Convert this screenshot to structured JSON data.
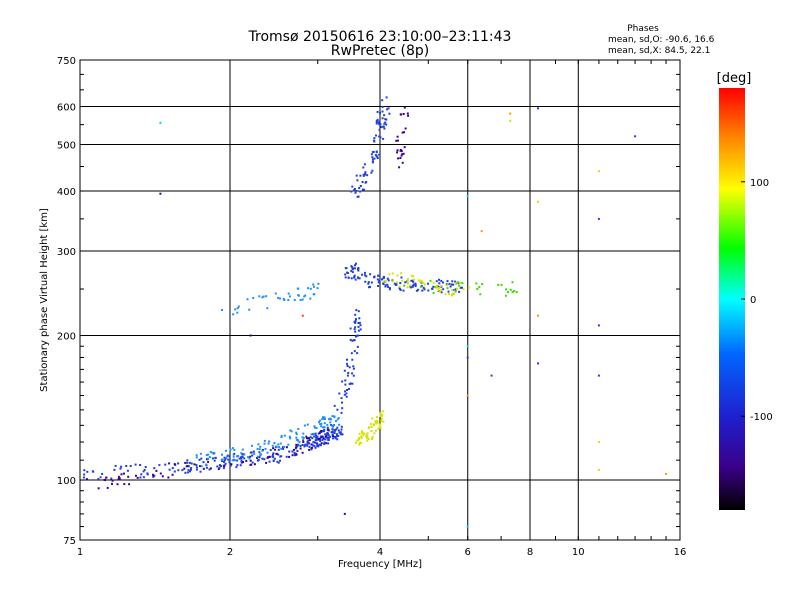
{
  "chart_data": {
    "type": "scatter",
    "title": "Tromsø 20150616 23:10:00–23:11:43",
    "subtitle": "RwPretec (8p)",
    "xlabel": "Frequency [MHz]",
    "ylabel": "Stationary phase Virtual Height [km]",
    "x_scale": "log",
    "y_scale": "log",
    "xlim": [
      1,
      16
    ],
    "ylim": [
      75,
      750
    ],
    "x_ticks": [
      1,
      2,
      4,
      6,
      8,
      10,
      16
    ],
    "y_ticks": [
      75,
      100,
      200,
      300,
      400,
      500,
      600,
      750
    ],
    "grid": true,
    "stats": {
      "heading": "Phases",
      "line_o": "mean, sd,O: -90.6, 16.6",
      "line_x": "mean, sd,X:  84.5, 22.1"
    },
    "colorbar": {
      "label": "[deg]",
      "range": [
        -180,
        180
      ],
      "ticks": [
        100,
        0,
        -100
      ]
    },
    "colors": {
      "purple": "#3a0098",
      "blue": "#1f3fe0",
      "skyblue": "#1e90ff",
      "yellow": "#d8e400",
      "green": "#3adc00",
      "cyan": "#00d8e8",
      "orange": "#ff9a00",
      "red": "#ff3a1e"
    },
    "series": [
      {
        "phase": -105,
        "color": "blue",
        "count": 260,
        "points": [
          [
            1.0,
            103
          ],
          [
            1.5,
            106
          ],
          [
            2.0,
            110
          ],
          [
            2.5,
            113
          ],
          [
            2.9,
            120
          ],
          [
            3.1,
            124
          ],
          [
            3.3,
            128
          ]
        ]
      },
      {
        "phase": -130,
        "color": "purple",
        "count": 90,
        "points": [
          [
            1.05,
            98
          ],
          [
            1.4,
            104
          ],
          [
            1.8,
            108
          ],
          [
            2.3,
            112
          ],
          [
            2.8,
            118
          ],
          [
            3.2,
            126
          ]
        ]
      },
      {
        "phase": -75,
        "color": "skyblue",
        "count": 110,
        "points": [
          [
            1.7,
            110
          ],
          [
            2.2,
            115
          ],
          [
            2.6,
            122
          ],
          [
            3.0,
            130
          ],
          [
            3.3,
            136
          ]
        ]
      },
      {
        "phase": -110,
        "color": "blue",
        "count": 60,
        "points": [
          [
            3.3,
            140
          ],
          [
            3.45,
            165
          ],
          [
            3.55,
            200
          ],
          [
            3.6,
            230
          ]
        ]
      },
      {
        "phase": -115,
        "color": "blue",
        "count": 130,
        "points": [
          [
            3.4,
            268
          ],
          [
            3.6,
            275
          ],
          [
            3.8,
            262
          ],
          [
            4.1,
            258
          ],
          [
            4.6,
            256
          ],
          [
            5.2,
            254
          ],
          [
            5.8,
            252
          ]
        ]
      },
      {
        "phase": -80,
        "color": "skyblue",
        "count": 40,
        "points": [
          [
            1.95,
            226
          ],
          [
            2.3,
            236
          ],
          [
            2.7,
            243
          ],
          [
            3.1,
            255
          ]
        ]
      },
      {
        "phase": -120,
        "color": "blue",
        "count": 80,
        "points": [
          [
            3.55,
            395
          ],
          [
            3.7,
            430
          ],
          [
            3.9,
            480
          ],
          [
            4.0,
            560
          ],
          [
            4.1,
            610
          ]
        ]
      },
      {
        "phase": -125,
        "color": "purple",
        "count": 25,
        "points": [
          [
            4.3,
            460
          ],
          [
            4.4,
            520
          ],
          [
            4.45,
            600
          ]
        ]
      },
      {
        "phase": 100,
        "color": "yellow",
        "count": 60,
        "points": [
          [
            3.55,
            120
          ],
          [
            3.7,
            124
          ],
          [
            3.85,
            128
          ],
          [
            4.0,
            136
          ]
        ]
      },
      {
        "phase": 95,
        "color": "yellow",
        "count": 45,
        "points": [
          [
            4.0,
            270
          ],
          [
            4.4,
            262
          ],
          [
            4.8,
            256
          ],
          [
            5.4,
            252
          ],
          [
            6.0,
            250
          ]
        ]
      },
      {
        "phase": 60,
        "color": "green",
        "count": 25,
        "points": [
          [
            4.5,
            258
          ],
          [
            5.0,
            255
          ],
          [
            5.8,
            250
          ],
          [
            6.6,
            250
          ],
          [
            7.4,
            252
          ]
        ]
      }
    ]
  }
}
